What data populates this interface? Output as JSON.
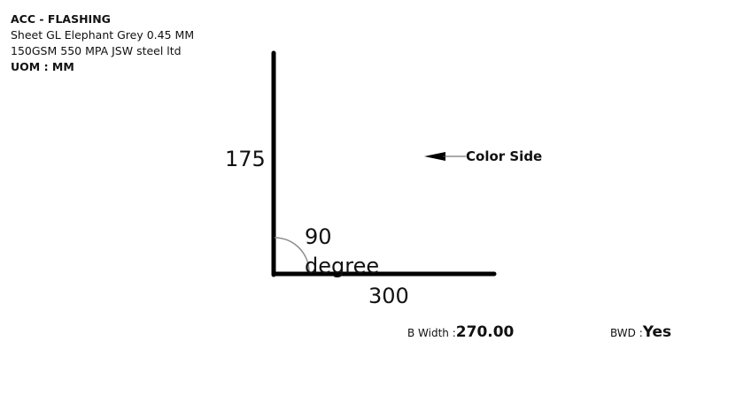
{
  "header": {
    "title": "ACC - FLASHING",
    "line1": "Sheet GL Elephant Grey 0.45 MM",
    "line2": "150GSM 550 MPA JSW steel ltd",
    "uom": "UOM : MM"
  },
  "diagram": {
    "vertical_length": "175",
    "horizontal_length": "300",
    "angle_value": "90",
    "angle_unit": "degree",
    "color_side_label": "Color Side",
    "line_color": "#000000",
    "arc_color": "#8a8a8a"
  },
  "footer": {
    "b_width_label": "B Width :",
    "b_width_value": "270.00",
    "bwd_label": "BWD :",
    "bwd_value": "Yes"
  }
}
